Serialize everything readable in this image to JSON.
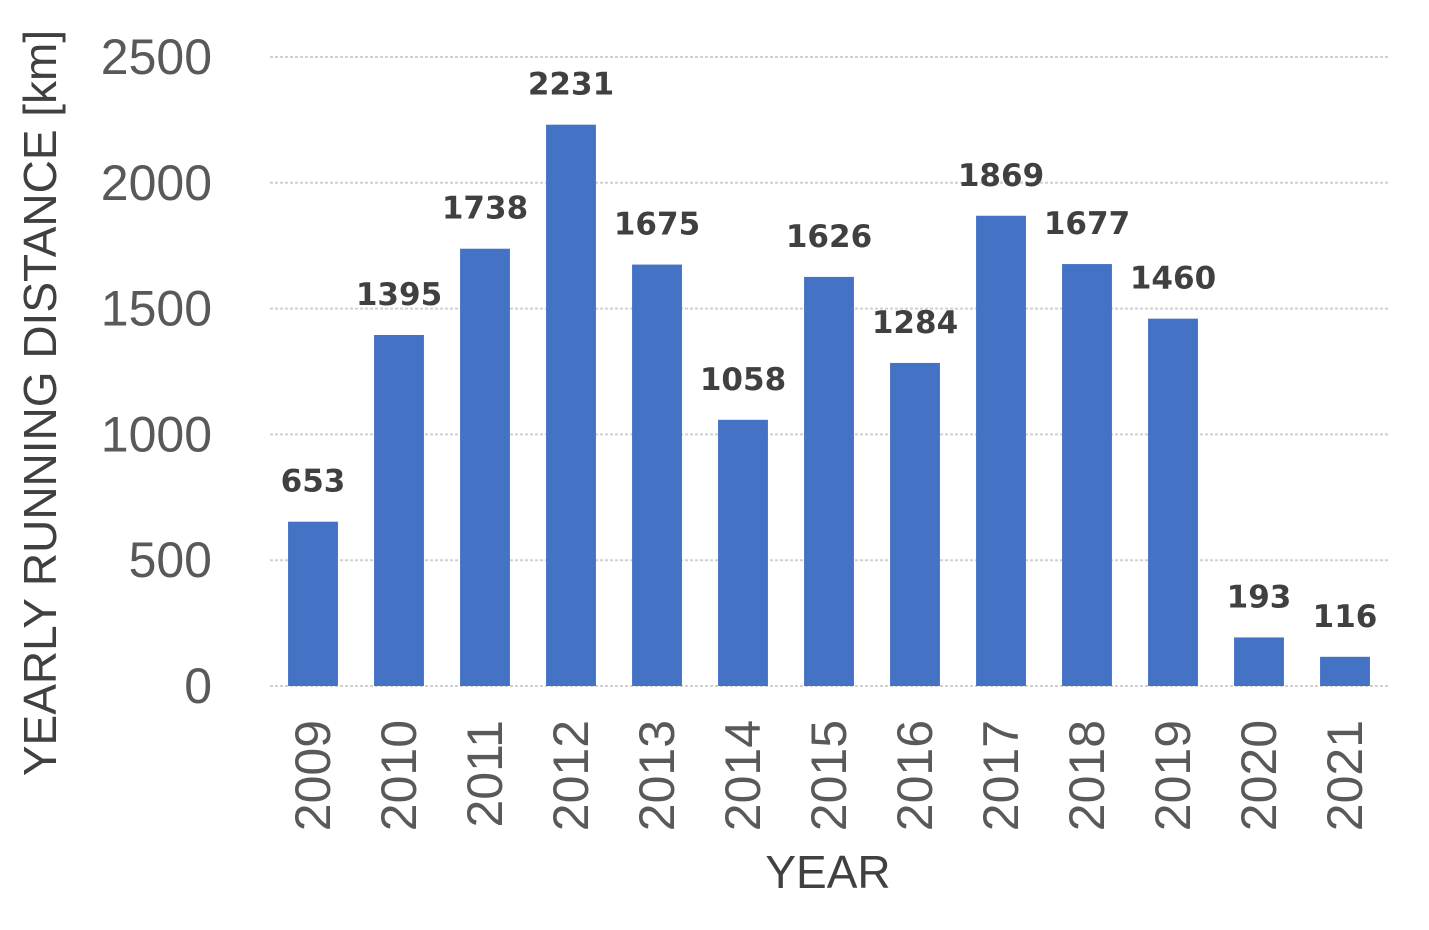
{
  "chart_data": {
    "type": "bar",
    "categories": [
      "2009",
      "2010",
      "2011",
      "2012",
      "2013",
      "2014",
      "2015",
      "2016",
      "2017",
      "2018",
      "2019",
      "2020",
      "2021"
    ],
    "values": [
      653,
      1395,
      1738,
      2231,
      1675,
      1058,
      1626,
      1284,
      1869,
      1677,
      1460,
      193,
      116
    ],
    "xlabel": "YEAR",
    "ylabel": "YEARLY RUNNING DISTANCE [km]",
    "ylim": [
      0,
      2500
    ],
    "yticks": [
      0,
      500,
      1000,
      1500,
      2000,
      2500
    ],
    "grid": true,
    "legend": "none",
    "data_labels": true,
    "colors": {
      "bar": "#4472C4"
    }
  }
}
